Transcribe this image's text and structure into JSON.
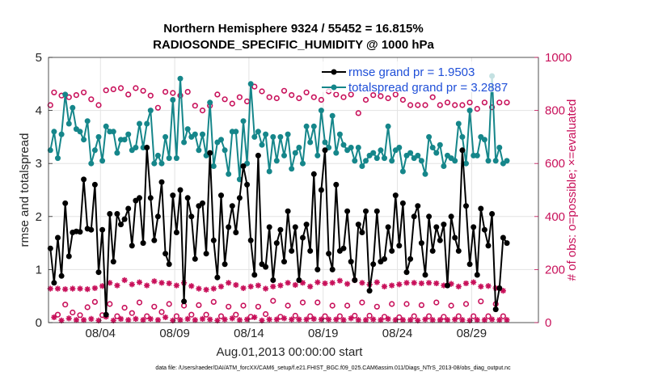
{
  "chart_data": {
    "type": "line",
    "title_line1": "Northern Hemisphere 9324 / 55452 = 16.815%",
    "title_line2": "RADIOSONDE_SPECIFIC_HUMIDITY @ 1000 hPa",
    "xlabel": "Aug.01,2013 00:00:00 start",
    "ylabel": "rmse and totalspread",
    "ylabel_right": "# of obs: o=possible; ×=evaluated",
    "xlim": [
      0,
      33
    ],
    "ylim": [
      0,
      5
    ],
    "ylim_right": [
      0,
      1000
    ],
    "x_tick_values": [
      3.5,
      8.5,
      13.5,
      18.5,
      23.5,
      28.5
    ],
    "x_tick_labels": [
      "08/04",
      "08/09",
      "08/14",
      "08/19",
      "08/24",
      "08/29"
    ],
    "y_ticks": [
      "0",
      "1",
      "2",
      "3",
      "4",
      "5"
    ],
    "y_ticks_right": [
      "0",
      "200",
      "400",
      "600",
      "800",
      "1000"
    ],
    "grid": true,
    "legend_position": "top-right",
    "footer": "data file: /Users/raeder/DAI/ATM_forcXX/CAM6_setup/f.e21.FHIST_BGC.f09_025.CAM6assim.011/Diags_NTrS_2013-08/obs_diag_output.nc",
    "n_points": 124,
    "x_start": 0.125,
    "x_step": 0.25,
    "series": [
      {
        "name": "rmse",
        "legend": "rmse grand pr = 1.9503",
        "axis": "left",
        "color": "#000000",
        "marker": "filled-circle",
        "values": [
          1.4,
          0.75,
          1.6,
          0.88,
          2.25,
          1.25,
          1.7,
          1.72,
          1.71,
          2.7,
          1.77,
          1.75,
          2.6,
          0.95,
          1.75,
          0.15,
          2.05,
          1.15,
          2.05,
          1.85,
          1.95,
          2.15,
          1.45,
          2.3,
          2.35,
          1.5,
          3.3,
          2.35,
          1.55,
          2.0,
          2.65,
          1.3,
          1.1,
          2.4,
          1.7,
          2.5,
          0.4,
          2.35,
          2.0,
          1.2,
          2.2,
          2.25,
          1.3,
          3.2,
          1.55,
          0.85,
          2.4,
          1.1,
          1.8,
          2.2,
          1.7,
          2.35,
          2.95,
          2.6,
          1.55,
          0.9,
          3.15,
          1.1,
          1.05,
          1.8,
          0.8,
          1.5,
          1.75,
          1.15,
          2.1,
          1.35,
          1.8,
          0.8,
          1.6,
          1.85,
          1.35,
          2.8,
          1.0,
          2.5,
          3.25,
          1.3,
          1.0,
          2.6,
          1.35,
          1.4,
          2.1,
          1.15,
          0.8,
          1.85,
          1.7,
          2.1,
          0.6,
          1.1,
          2.1,
          1.15,
          1.2,
          1.8,
          1.35,
          2.4,
          1.45,
          2.25,
          0.95,
          1.2,
          2.0,
          2.2,
          1.5,
          0.9,
          2.0,
          1.35,
          1.8,
          1.55,
          1.85,
          0.7,
          2.0,
          1.6,
          1.35,
          3.25,
          2.2,
          1.1,
          1.8,
          0.9,
          2.15,
          1.75,
          1.45,
          2.05,
          0.25,
          0.65,
          1.6,
          1.5
        ]
      },
      {
        "name": "totalspread",
        "legend": "totalspread grand pr = 3.2887",
        "axis": "left",
        "color": "#15868a",
        "marker": "filled-circle",
        "values": [
          3.25,
          3.6,
          3.1,
          3.55,
          4.3,
          3.75,
          4.05,
          3.65,
          3.6,
          3.45,
          3.8,
          3.0,
          3.25,
          3.5,
          3.05,
          3.7,
          3.6,
          3.6,
          3.2,
          3.45,
          3.45,
          3.55,
          3.25,
          3.3,
          3.75,
          3.3,
          3.75,
          4.0,
          3.0,
          3.15,
          3.0,
          3.5,
          3.1,
          4.2,
          3.1,
          4.6,
          3.4,
          3.65,
          3.5,
          3.55,
          3.25,
          3.55,
          3.15,
          4.15,
          2.95,
          3.4,
          3.45,
          3.25,
          2.8,
          3.6,
          3.6,
          2.7,
          3.8,
          3.0,
          4.5,
          3.5,
          3.6,
          3.35,
          3.55,
          2.85,
          3.5,
          3.05,
          3.5,
          3.15,
          3.55,
          2.9,
          3.2,
          3.3,
          3.0,
          3.7,
          3.4,
          3.7,
          3.15,
          4.0,
          3.4,
          3.3,
          3.9,
          3.2,
          3.55,
          3.35,
          3.25,
          3.3,
          3.05,
          3.3,
          2.95,
          3.05,
          3.15,
          3.2,
          3.1,
          3.25,
          3.1,
          3.7,
          3.05,
          3.25,
          3.3,
          2.85,
          3.15,
          3.2,
          3.1,
          3.15,
          3.05,
          2.8,
          3.5,
          3.3,
          3.2,
          3.35,
          2.95,
          3.15,
          3.1,
          3.05,
          3.75,
          3.5,
          3.0,
          4.0,
          3.15,
          3.15,
          3.5,
          3.45,
          3.05,
          4.65,
          3.05,
          3.3,
          3.0,
          3.05
        ]
      },
      {
        "name": "obs possible",
        "axis": "right",
        "color": "#c8105a",
        "marker": "open-circle",
        "values": [
          820,
          868,
          30,
          856,
          68,
          850,
          38,
          858,
          28,
          868,
          58,
          842,
          78,
          820,
          28,
          876,
          70,
          880,
          24,
          884,
          56,
          860,
          36,
          884,
          76,
          874,
          24,
          856,
          60,
          810,
          40,
          870,
          70,
          866,
          24,
          856,
          64,
          870,
          30,
          818,
          66,
          800,
          30,
          818,
          78,
          860,
          24,
          842,
          60,
          826,
          30,
          850,
          64,
          834,
          22,
          890,
          60,
          872,
          32,
          850,
          82,
          846,
          22,
          874,
          64,
          858,
          26,
          846,
          76,
          868,
          24,
          850,
          76,
          840,
          24,
          872,
          64,
          860,
          24,
          850,
          64,
          860,
          26,
          790,
          76,
          840,
          26,
          858,
          60,
          854,
          22,
          846,
          70,
          860,
          20,
          840,
          70,
          820,
          24,
          820,
          66,
          820,
          24,
          850,
          76,
          820,
          22,
          830,
          64,
          820,
          24,
          820,
          70,
          830,
          24,
          806,
          80,
          830,
          24,
          812,
          70,
          830,
          24,
          830
        ]
      },
      {
        "name": "obs evaluated",
        "axis": "right",
        "color": "#c8105a",
        "marker": "asterisk",
        "values": [
          128,
          20,
          128,
          8,
          126,
          16,
          128,
          10,
          128,
          10,
          126,
          14,
          130,
          8,
          138,
          22,
          150,
          8,
          140,
          14,
          160,
          10,
          144,
          14,
          152,
          10,
          140,
          14,
          156,
          10,
          150,
          20,
          148,
          8,
          140,
          10,
          150,
          14,
          138,
          10,
          128,
          14,
          124,
          12,
          128,
          8,
          136,
          12,
          150,
          16,
          142,
          10,
          130,
          12,
          136,
          20,
          140,
          8,
          128,
          12,
          136,
          12,
          140,
          16,
          150,
          12,
          142,
          12,
          150,
          12,
          136,
          14,
          152,
          12,
          148,
          12,
          150,
          12,
          158,
          10,
          146,
          16,
          160,
          10,
          150,
          10,
          144,
          12,
          152,
          10,
          136,
          14,
          140,
          10,
          144,
          10,
          150,
          10,
          150,
          8,
          148,
          12,
          150,
          10,
          148,
          10,
          140,
          10,
          146,
          12,
          136,
          10,
          148,
          8,
          152,
          10,
          136,
          10,
          138,
          12,
          130,
          10,
          120,
          10
        ]
      }
    ]
  }
}
